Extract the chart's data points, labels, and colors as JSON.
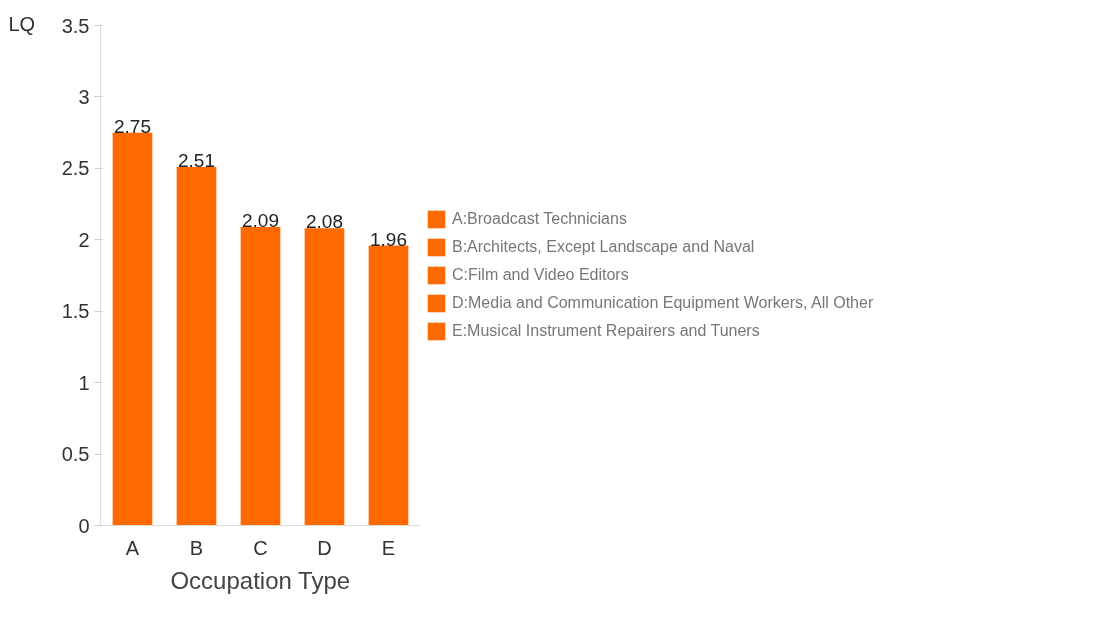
{
  "chart_data": {
    "type": "bar",
    "xlabel": "Occupation Type",
    "ylabel": "LQ",
    "categories": [
      "A",
      "B",
      "C",
      "D",
      "E"
    ],
    "series": [
      {
        "name": "A:Broadcast Technicians",
        "color": "#ff6a00",
        "values": [
          2.75,
          null,
          null,
          null,
          null
        ]
      },
      {
        "name": "B:Architects, Except Landscape and Naval",
        "color": "#ff6a00",
        "values": [
          null,
          2.51,
          null,
          null,
          null
        ]
      },
      {
        "name": "C:Film and Video Editors",
        "color": "#ff6a00",
        "values": [
          null,
          null,
          2.09,
          null,
          null
        ]
      },
      {
        "name": "D:Media and Communication Equipment Workers, All Other",
        "color": "#ff6a00",
        "values": [
          null,
          null,
          null,
          2.08,
          null
        ]
      },
      {
        "name": "E:Musical Instrument Repairers and Tuners",
        "color": "#ff6a00",
        "values": [
          null,
          null,
          null,
          null,
          1.96
        ]
      }
    ],
    "ylim": [
      0,
      3.5
    ],
    "yticks": [
      0,
      0.5,
      1,
      1.5,
      2,
      2.5,
      3,
      3.5
    ],
    "grid": false,
    "legend": "right",
    "data_labels": true
  }
}
